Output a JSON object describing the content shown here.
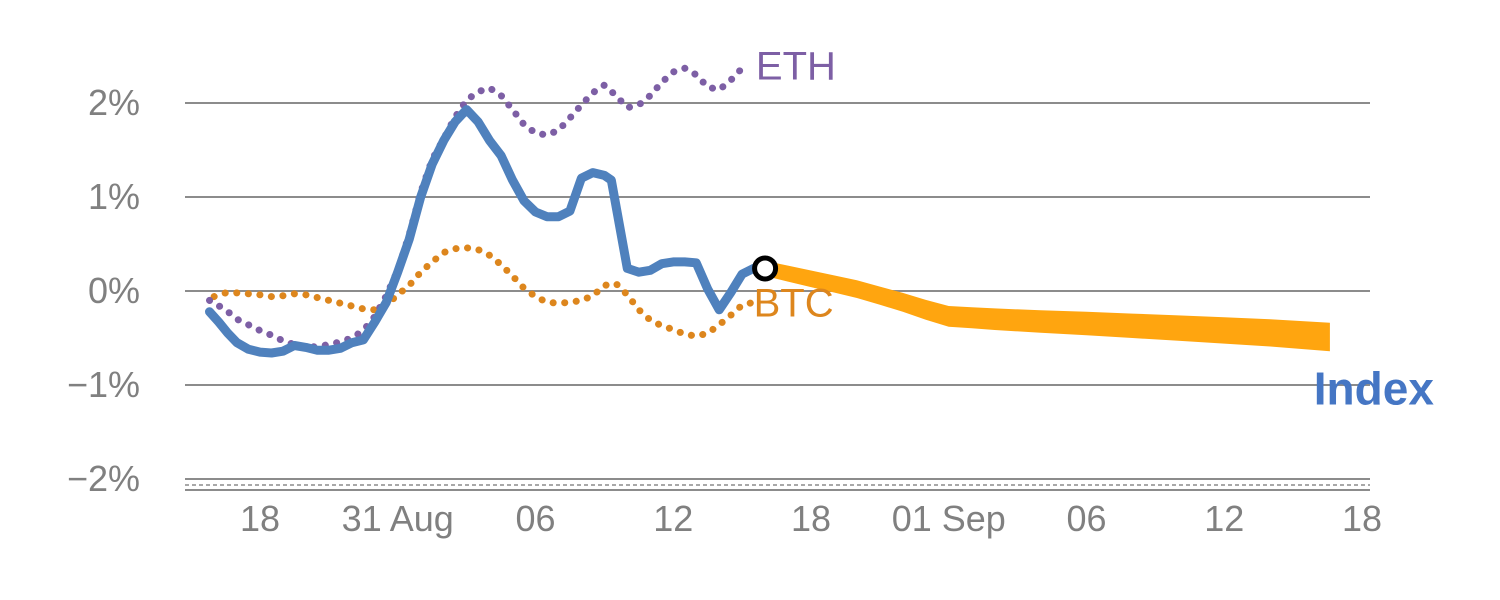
{
  "chart_data": {
    "type": "line",
    "title": "",
    "xlabel": "",
    "ylabel": "",
    "grid": "horizontal",
    "legend_position": "inline-labels",
    "x_unit": "days (0 = first x tick)",
    "y_unit": "percent",
    "x_ticks": [
      {
        "value": 0,
        "label": "18"
      },
      {
        "value": 6,
        "label": "31 Aug"
      },
      {
        "value": 12,
        "label": "06"
      },
      {
        "value": 18,
        "label": "12"
      },
      {
        "value": 24,
        "label": "18"
      },
      {
        "value": 30,
        "label": "01 Sep"
      },
      {
        "value": 36,
        "label": "06"
      },
      {
        "value": 42,
        "label": "12"
      },
      {
        "value": 48,
        "label": "18"
      }
    ],
    "y_ticks": [
      {
        "value": 2,
        "label": "2%"
      },
      {
        "value": 1,
        "label": "1%"
      },
      {
        "value": 0,
        "label": "0%"
      },
      {
        "value": -1,
        "label": "−1%"
      },
      {
        "value": -2,
        "label": "−2%"
      }
    ],
    "y_range": [
      -2.12,
      2.46
    ],
    "x_range": [
      -3.2,
      48.4
    ],
    "grid_color": "#8c8c8c",
    "axis_text_color": "#808080",
    "series": [
      {
        "name": "BTC",
        "color": "#dd861d",
        "style": "dotted",
        "width": 7,
        "points": [
          [
            -2.0,
            -0.06
          ],
          [
            -1.5,
            -0.02
          ],
          [
            -1,
            -0.02
          ],
          [
            -0.5,
            -0.03
          ],
          [
            0,
            -0.04
          ],
          [
            0.5,
            -0.06
          ],
          [
            1,
            -0.05
          ],
          [
            1.5,
            -0.03
          ],
          [
            2,
            -0.04
          ],
          [
            2.5,
            -0.07
          ],
          [
            3,
            -0.1
          ],
          [
            3.5,
            -0.13
          ],
          [
            4,
            -0.16
          ],
          [
            4.5,
            -0.19
          ],
          [
            5,
            -0.2
          ],
          [
            5.5,
            -0.15
          ],
          [
            6,
            -0.04
          ],
          [
            6.5,
            0.06
          ],
          [
            7,
            0.2
          ],
          [
            7.5,
            0.31
          ],
          [
            8,
            0.41
          ],
          [
            8.5,
            0.45
          ],
          [
            9,
            0.46
          ],
          [
            9.5,
            0.44
          ],
          [
            10,
            0.38
          ],
          [
            10.5,
            0.28
          ],
          [
            11,
            0.16
          ],
          [
            11.5,
            0.03
          ],
          [
            12,
            -0.06
          ],
          [
            12.5,
            -0.12
          ],
          [
            13,
            -0.13
          ],
          [
            13.5,
            -0.12
          ],
          [
            14,
            -0.1
          ],
          [
            14.5,
            -0.05
          ],
          [
            15,
            0.06
          ],
          [
            15.5,
            0.08
          ],
          [
            16,
            -0.04
          ],
          [
            16.5,
            -0.2
          ],
          [
            17,
            -0.31
          ],
          [
            17.5,
            -0.37
          ],
          [
            18,
            -0.41
          ],
          [
            18.5,
            -0.46
          ],
          [
            19,
            -0.48
          ],
          [
            19.5,
            -0.45
          ],
          [
            20,
            -0.36
          ],
          [
            20.5,
            -0.26
          ],
          [
            21,
            -0.15
          ],
          [
            21.5,
            -0.12
          ],
          [
            21.8,
            -0.15
          ]
        ]
      },
      {
        "name": "ETH",
        "color": "#7d5fa5",
        "style": "dotted",
        "width": 7,
        "points": [
          [
            -2.2,
            -0.1
          ],
          [
            -1.5,
            -0.2
          ],
          [
            -1,
            -0.3
          ],
          [
            -0.5,
            -0.36
          ],
          [
            0,
            -0.42
          ],
          [
            0.5,
            -0.47
          ],
          [
            1,
            -0.53
          ],
          [
            1.5,
            -0.57
          ],
          [
            2,
            -0.6
          ],
          [
            2.5,
            -0.59
          ],
          [
            3,
            -0.57
          ],
          [
            3.5,
            -0.54
          ],
          [
            4,
            -0.5
          ],
          [
            4.5,
            -0.42
          ],
          [
            5,
            -0.27
          ],
          [
            5.5,
            -0.05
          ],
          [
            6,
            0.22
          ],
          [
            6.5,
            0.6
          ],
          [
            7,
            1.05
          ],
          [
            7.5,
            1.4
          ],
          [
            8,
            1.62
          ],
          [
            8.5,
            1.85
          ],
          [
            9,
            2.03
          ],
          [
            9.5,
            2.12
          ],
          [
            10,
            2.16
          ],
          [
            10.5,
            2.08
          ],
          [
            11,
            1.93
          ],
          [
            11.5,
            1.77
          ],
          [
            12,
            1.68
          ],
          [
            12.5,
            1.66
          ],
          [
            13,
            1.71
          ],
          [
            13.5,
            1.84
          ],
          [
            14,
            1.98
          ],
          [
            14.5,
            2.11
          ],
          [
            15,
            2.19
          ],
          [
            15.5,
            2.08
          ],
          [
            16,
            1.95
          ],
          [
            16.5,
            1.98
          ],
          [
            17,
            2.08
          ],
          [
            17.5,
            2.22
          ],
          [
            18,
            2.33
          ],
          [
            18.5,
            2.37
          ],
          [
            19,
            2.3
          ],
          [
            19.5,
            2.17
          ],
          [
            20,
            2.14
          ],
          [
            20.5,
            2.24
          ],
          [
            21,
            2.37
          ],
          [
            21.3,
            2.41
          ]
        ]
      },
      {
        "name": "Index",
        "color": "#4f81bd",
        "style": "solid",
        "width": 9,
        "points": [
          [
            -2.2,
            -0.22
          ],
          [
            -1.8,
            -0.33
          ],
          [
            -1.4,
            -0.45
          ],
          [
            -1.0,
            -0.55
          ],
          [
            -0.5,
            -0.62
          ],
          [
            0,
            -0.65
          ],
          [
            0.5,
            -0.66
          ],
          [
            1,
            -0.64
          ],
          [
            1.5,
            -0.58
          ],
          [
            2,
            -0.6
          ],
          [
            2.5,
            -0.63
          ],
          [
            3,
            -0.63
          ],
          [
            3.5,
            -0.61
          ],
          [
            4,
            -0.55
          ],
          [
            4.5,
            -0.52
          ],
          [
            5,
            -0.33
          ],
          [
            5.5,
            -0.12
          ],
          [
            6,
            0.2
          ],
          [
            6.5,
            0.55
          ],
          [
            7,
            1.0
          ],
          [
            7.5,
            1.35
          ],
          [
            8,
            1.6
          ],
          [
            8.5,
            1.8
          ],
          [
            9,
            1.93
          ],
          [
            9.5,
            1.8
          ],
          [
            10,
            1.6
          ],
          [
            10.5,
            1.44
          ],
          [
            11,
            1.18
          ],
          [
            11.5,
            0.96
          ],
          [
            12,
            0.84
          ],
          [
            12.5,
            0.79
          ],
          [
            13,
            0.79
          ],
          [
            13.5,
            0.85
          ],
          [
            14,
            1.2
          ],
          [
            14.5,
            1.26
          ],
          [
            15,
            1.23
          ],
          [
            15.3,
            1.18
          ],
          [
            16,
            0.24
          ],
          [
            16.5,
            0.2
          ],
          [
            17,
            0.22
          ],
          [
            17.5,
            0.29
          ],
          [
            18,
            0.31
          ],
          [
            18.5,
            0.31
          ],
          [
            19,
            0.3
          ],
          [
            19.5,
            0.02
          ],
          [
            20,
            -0.2
          ],
          [
            20.5,
            -0.02
          ],
          [
            21,
            0.18
          ],
          [
            21.5,
            0.24
          ],
          [
            22,
            0.24
          ]
        ]
      }
    ],
    "forecast_band": {
      "name": "forecast-band",
      "color": "#ffa50f",
      "x": [
        22,
        23,
        24,
        25,
        26,
        27,
        28,
        29,
        30,
        31,
        32,
        34,
        36,
        38,
        40,
        42,
        44,
        46.6
      ],
      "upper": [
        0.32,
        0.27,
        0.218,
        0.166,
        0.114,
        0.047,
        -0.02,
        -0.095,
        -0.16,
        -0.173,
        -0.185,
        -0.205,
        -0.22,
        -0.24,
        -0.26,
        -0.28,
        -0.3,
        -0.338
      ],
      "lower": [
        0.16,
        0.1,
        0.042,
        -0.016,
        -0.074,
        -0.147,
        -0.22,
        -0.305,
        -0.38,
        -0.397,
        -0.415,
        -0.445,
        -0.47,
        -0.5,
        -0.53,
        -0.56,
        -0.59,
        -0.642
      ]
    },
    "marker": {
      "name": "forecast-start-marker",
      "shape": "open-circle",
      "x": 22,
      "y": 0.24,
      "stroke_color": "#000000",
      "fill_color": "#ffffff"
    },
    "labels": [
      {
        "id": "eth",
        "text": "ETH",
        "color": "#7d5fa5",
        "x": 21.6,
        "y": 2.25,
        "size": 40,
        "weight": "normal"
      },
      {
        "id": "btc",
        "text": "BTC",
        "color": "#dd861d",
        "x": 21.5,
        "y": -0.27,
        "size": 40,
        "weight": "normal"
      },
      {
        "id": "index",
        "text": "Index",
        "color": "#4576c4",
        "x": 45.9,
        "y": -1.21,
        "size": 46,
        "weight": "bold"
      }
    ]
  }
}
